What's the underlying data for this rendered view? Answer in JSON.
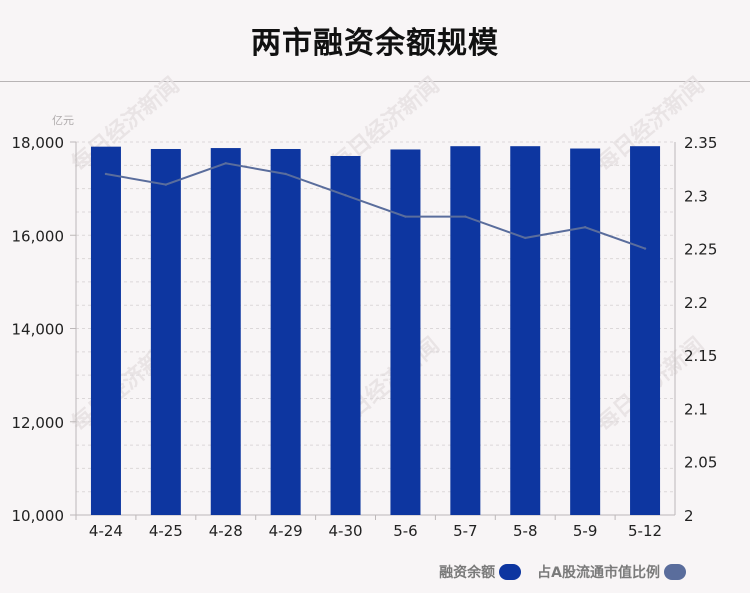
{
  "title": "两市融资余额规模",
  "colors": {
    "bar": "#0d36a0",
    "line": "#5a6d9c",
    "background": "#f8f5f6"
  },
  "watermark": "每日经济新闻",
  "legend": [
    {
      "label": "融资余额",
      "color": "#0d36a0"
    },
    {
      "label": "占A股流通市值比例",
      "color": "#5a6d9c"
    }
  ],
  "chart_data": {
    "type": "bar",
    "title": "两市融资余额规模",
    "categories": [
      "4-24",
      "4-25",
      "4-28",
      "4-29",
      "4-30",
      "5-6",
      "5-7",
      "5-8",
      "5-9",
      "5-12"
    ],
    "series": [
      {
        "name": "融资余额",
        "type": "bar",
        "axis": "left",
        "values": [
          17900,
          17850,
          17870,
          17850,
          17700,
          17840,
          17910,
          17910,
          17860,
          17910
        ]
      },
      {
        "name": "占A股流通市值比例",
        "type": "line",
        "axis": "right",
        "values": [
          2.32,
          2.31,
          2.33,
          2.32,
          2.3,
          2.28,
          2.28,
          2.26,
          2.27,
          2.25
        ]
      }
    ],
    "y_left": {
      "unit": "亿元",
      "ylim": [
        10000,
        18000
      ],
      "ticks": [
        10000,
        12000,
        14000,
        16000,
        18000
      ],
      "tick_labels": [
        "10,000",
        "12,000",
        "14,000",
        "16,000",
        "18,000"
      ]
    },
    "y_right": {
      "ylim": [
        2,
        2.35
      ],
      "ticks": [
        2,
        2.05,
        2.1,
        2.15,
        2.2,
        2.25,
        2.3,
        2.35
      ],
      "tick_labels": [
        "2",
        "2.05",
        "2.1",
        "2.15",
        "2.2",
        "2.25",
        "2.3",
        "2.35"
      ]
    },
    "grid": true,
    "legend_position": "bottom-right"
  }
}
